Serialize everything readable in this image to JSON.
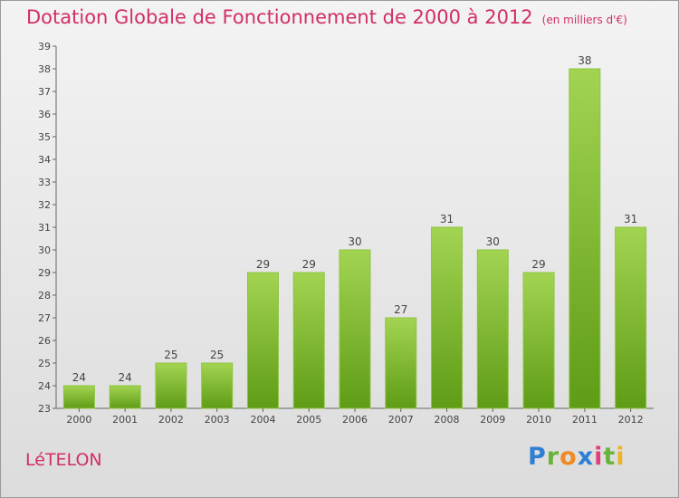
{
  "title": "Dotation Globale de Fonctionnement de 2000 à 2012",
  "unit_note": "(en milliers d'€)",
  "commune": "LéTELON",
  "logo_letters": [
    "P",
    "r",
    "o",
    "x",
    "i",
    "t",
    "i"
  ],
  "colors": {
    "accent": "#d22e63",
    "bar_light": "#9ccf4a",
    "bar_dark": "#64a11a"
  },
  "chart_data": {
    "type": "bar",
    "categories": [
      "2000",
      "2001",
      "2002",
      "2003",
      "2004",
      "2005",
      "2006",
      "2007",
      "2008",
      "2009",
      "2010",
      "2011",
      "2012"
    ],
    "values": [
      24,
      24,
      25,
      25,
      29,
      29,
      30,
      27,
      31,
      30,
      29,
      38,
      31
    ],
    "title": "Dotation Globale de Fonctionnement de 2000 à 2012",
    "xlabel": "",
    "ylabel": "",
    "ylim": [
      23,
      39
    ],
    "yticks": [
      23,
      24,
      25,
      26,
      27,
      28,
      29,
      30,
      31,
      32,
      33,
      34,
      35,
      36,
      37,
      38,
      39
    ],
    "grid": false,
    "legend": "none"
  }
}
